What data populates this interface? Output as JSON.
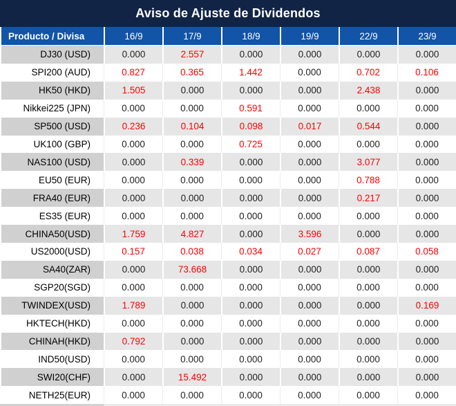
{
  "chart_data": {
    "type": "table",
    "title": "Aviso de Ajuste de Dividendos",
    "columns": [
      "Producto / Divisa",
      "16/9",
      "17/9",
      "18/9",
      "19/9",
      "22/9",
      "23/9"
    ],
    "rows": [
      [
        "DJ30 (USD)",
        "0.000",
        "2.557",
        "0.000",
        "0.000",
        "0.000",
        "0.000"
      ],
      [
        "SPI200 (AUD)",
        "0.827",
        "0.365",
        "1.442",
        "0.000",
        "0.702",
        "0.106"
      ],
      [
        "HK50 (HKD)",
        "1.505",
        "0.000",
        "0.000",
        "0.000",
        "2.438",
        "0.000"
      ],
      [
        "Nikkei225 (JPN)",
        "0.000",
        "0.000",
        "0.591",
        "0.000",
        "0.000",
        "0.000"
      ],
      [
        "SP500 (USD)",
        "0.236",
        "0.104",
        "0.098",
        "0.017",
        "0.544",
        "0.000"
      ],
      [
        "UK100 (GBP)",
        "0.000",
        "0.000",
        "0.725",
        "0.000",
        "0.000",
        "0.000"
      ],
      [
        "NAS100 (USD)",
        "0.000",
        "0.339",
        "0.000",
        "0.000",
        "3.077",
        "0.000"
      ],
      [
        "EU50 (EUR)",
        "0.000",
        "0.000",
        "0.000",
        "0.000",
        "0.788",
        "0.000"
      ],
      [
        "FRA40 (EUR)",
        "0.000",
        "0.000",
        "0.000",
        "0.000",
        "0.217",
        "0.000"
      ],
      [
        "ES35 (EUR)",
        "0.000",
        "0.000",
        "0.000",
        "0.000",
        "0.000",
        "0.000"
      ],
      [
        "CHINA50(USD)",
        "1.759",
        "4.827",
        "0.000",
        "3.596",
        "0.000",
        "0.000"
      ],
      [
        "US2000(USD)",
        "0.157",
        "0.038",
        "0.034",
        "0.027",
        "0.087",
        "0.058"
      ],
      [
        "SA40(ZAR)",
        "0.000",
        "73.668",
        "0.000",
        "0.000",
        "0.000",
        "0.000"
      ],
      [
        "SGP20(SGD)",
        "0.000",
        "0.000",
        "0.000",
        "0.000",
        "0.000",
        "0.000"
      ],
      [
        "TWINDEX(USD)",
        "1.789",
        "0.000",
        "0.000",
        "0.000",
        "0.000",
        "0.169"
      ],
      [
        "HKTECH(HKD)",
        "0.000",
        "0.000",
        "0.000",
        "0.000",
        "0.000",
        "0.000"
      ],
      [
        "CHINAH(HKD)",
        "0.792",
        "0.000",
        "0.000",
        "0.000",
        "0.000",
        "0.000"
      ],
      [
        "IND50(USD)",
        "0.000",
        "0.000",
        "0.000",
        "0.000",
        "0.000",
        "0.000"
      ],
      [
        "SWI20(CHF)",
        "0.000",
        "15.492",
        "0.000",
        "0.000",
        "0.000",
        "0.000"
      ],
      [
        "NETH25(EUR)",
        "0.000",
        "0.000",
        "0.000",
        "0.000",
        "0.000",
        "0.000"
      ]
    ],
    "layout_hints": {
      "shaded_rows": "odd rows (1st, 3rd, ...) have gray banding",
      "value_style_rule": "non-zero values shown in red, zeros in black"
    }
  },
  "colors": {
    "title_bg": "#112445",
    "header_bg": "#1254a7",
    "header_text": "#ffffff",
    "shaded_product_bg": "#d0d0d0",
    "shaded_value_bg": "#e6e6e6",
    "nonzero_value": "#fe0000",
    "zero_value": "#1f1f1f"
  }
}
